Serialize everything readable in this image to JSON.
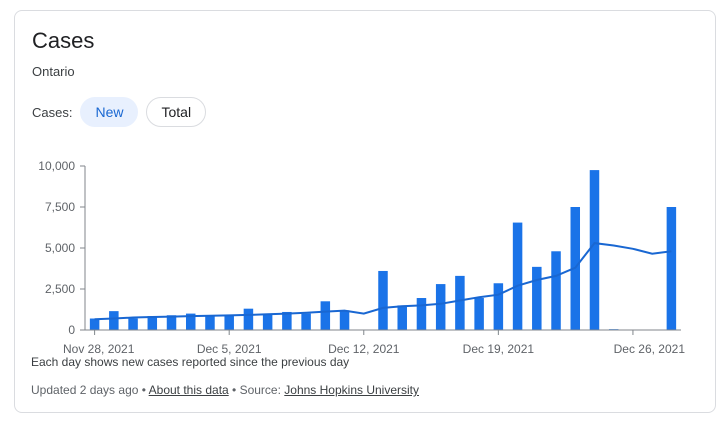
{
  "card": {
    "title": "Cases",
    "subtitle": "Ontario",
    "toggle_label": "Cases:",
    "chip_new": "New",
    "chip_total": "Total",
    "note": "Each day shows new cases reported since the previous day",
    "footer_updated": "Updated 2 days ago",
    "footer_sep": " • ",
    "footer_about": "About this data",
    "footer_source_prefix": "Source: ",
    "footer_source": "Johns Hopkins University"
  },
  "colors": {
    "bar": "#1a73e8",
    "line": "#1967d2",
    "axis": "#80868b",
    "grid": "#e8eaed"
  },
  "chart_data": {
    "type": "bar",
    "title": "",
    "xlabel": "",
    "ylabel": "",
    "ylim": [
      0,
      10000
    ],
    "yticks": [
      "0",
      "2,500",
      "5,000",
      "7,500",
      "10,000"
    ],
    "ytick_values": [
      0,
      2500,
      5000,
      7500,
      10000
    ],
    "xtick_labels": [
      "Nov 28, 2021",
      "Dec 5, 2021",
      "Dec 12, 2021",
      "Dec 19, 2021",
      "Dec 26, 2021"
    ],
    "xtick_indices": [
      0,
      7,
      14,
      21,
      28
    ],
    "dates": [
      "2021-11-28",
      "2021-11-29",
      "2021-11-30",
      "2021-12-01",
      "2021-12-02",
      "2021-12-03",
      "2021-12-04",
      "2021-12-05",
      "2021-12-06",
      "2021-12-07",
      "2021-12-08",
      "2021-12-09",
      "2021-12-10",
      "2021-12-11",
      "2021-12-12",
      "2021-12-13",
      "2021-12-14",
      "2021-12-15",
      "2021-12-16",
      "2021-12-17",
      "2021-12-18",
      "2021-12-19",
      "2021-12-20",
      "2021-12-21",
      "2021-12-22",
      "2021-12-23",
      "2021-12-24",
      "2021-12-25",
      "2021-12-26",
      "2021-12-27",
      "2021-12-28"
    ],
    "values": [
      700,
      1150,
      700,
      850,
      900,
      1000,
      850,
      900,
      1300,
      950,
      1100,
      1000,
      1750,
      1200,
      0,
      3600,
      1500,
      1950,
      2800,
      3300,
      1950,
      2850,
      6550,
      3850,
      4800,
      7500,
      9750,
      50,
      0,
      0,
      7500
    ],
    "series": [
      {
        "name": "New cases",
        "type": "bar",
        "values": [
          700,
          1150,
          700,
          850,
          900,
          1000,
          850,
          900,
          1300,
          950,
          1100,
          1000,
          1750,
          1200,
          0,
          3600,
          1500,
          1950,
          2800,
          3300,
          1950,
          2850,
          6550,
          3850,
          4800,
          7500,
          9750,
          50,
          0,
          0,
          7500
        ]
      },
      {
        "type": "line",
        "values": [
          650,
          700,
          760,
          790,
          820,
          850,
          870,
          890,
          920,
          960,
          1000,
          1050,
          1120,
          1180,
          1000,
          1350,
          1450,
          1500,
          1600,
          1800,
          2000,
          2150,
          2700,
          3050,
          3300,
          3800,
          5300,
          5150,
          4950,
          4650,
          4800
        ]
      }
    ],
    "grid": false
  }
}
